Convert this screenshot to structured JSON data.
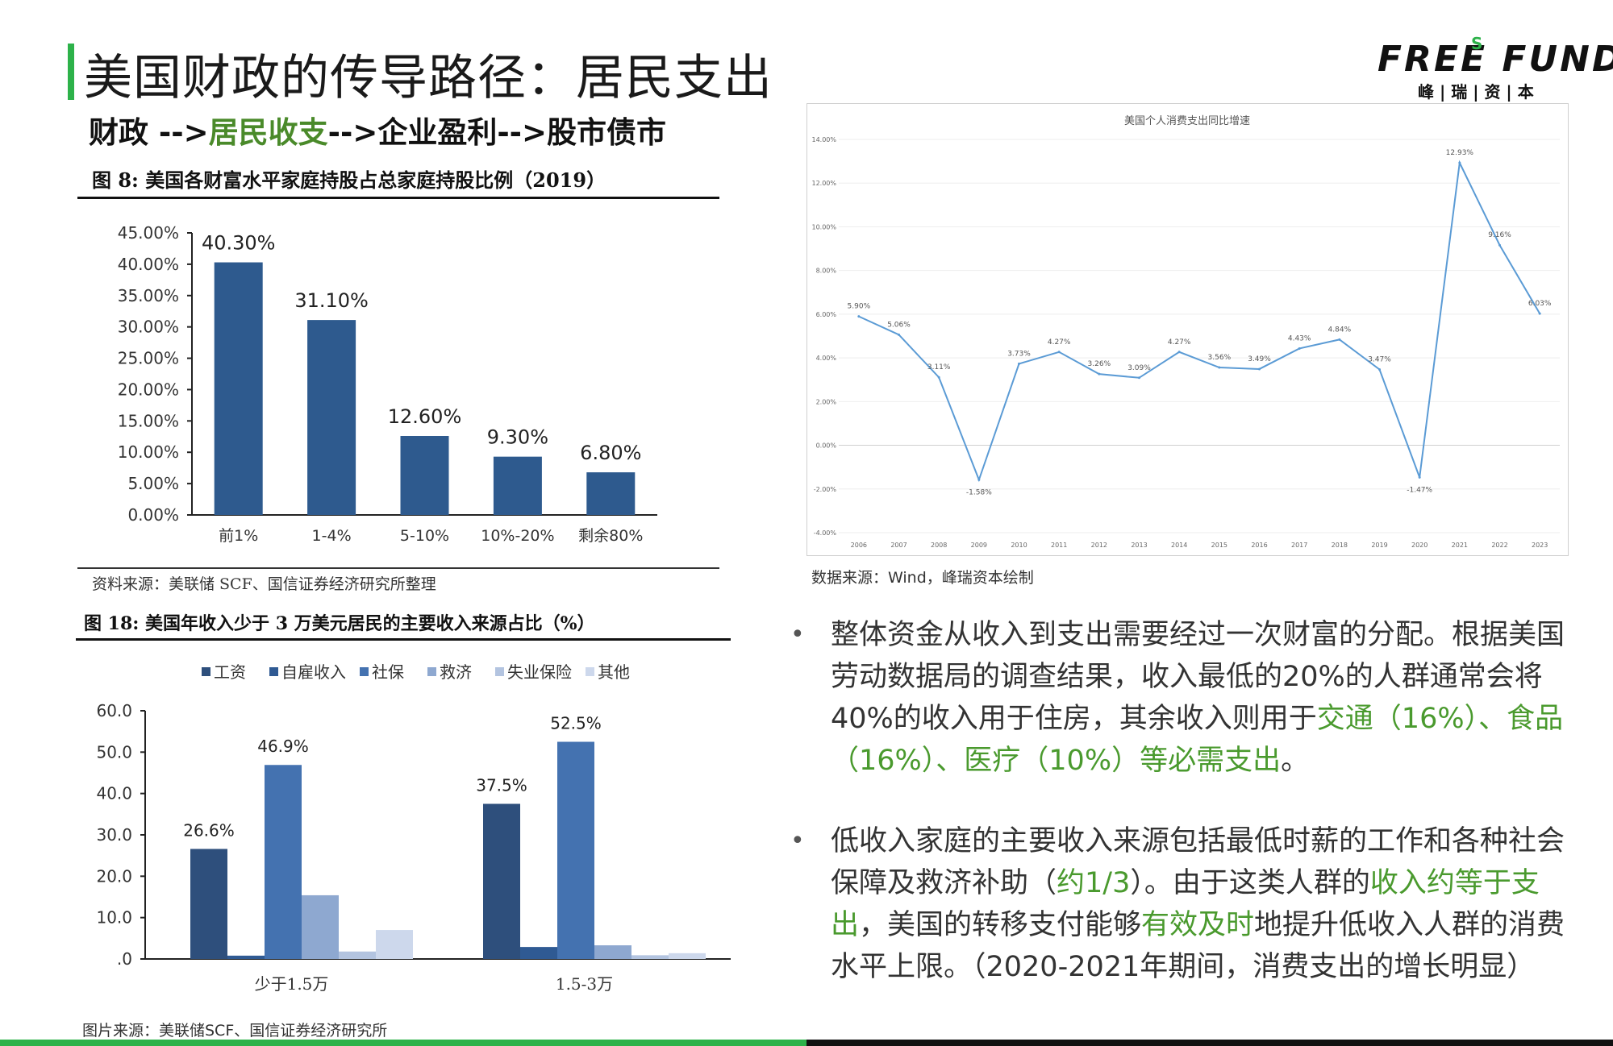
{
  "header": {
    "title": "美国财政的传导路径：居民支出",
    "subtitle_parts": [
      "财政 -->",
      "居民收支",
      "-->企业盈利-->股市债市"
    ],
    "logo_text": "FREE FUND",
    "logo_s": "S",
    "logo_cn": "峰 | 瑞 | 资 | 本"
  },
  "fig8": {
    "caption": "图 8:  美国各财富水平家庭持股占总家庭持股比例（2019）",
    "source": "资料来源：美联储 SCF、国信证券经济研究所整理"
  },
  "fig18": {
    "caption": "图 18:  美国年收入少于 3 万美元居民的主要收入来源占比（%）",
    "source": "图片来源：美联储SCF、国信证券经济研究所"
  },
  "line_chart_source": "数据来源：Wind，峰瑞资本绘制",
  "bullets": [
    {
      "parts": [
        {
          "text": "整体资金从收入到支出需要经过一次财富的分配。根据美国劳动数据局的调查结果，收入最低的20%的人群通常会将40%的收入用于住房，其余收入则用于",
          "green": false
        },
        {
          "text": "交通（16%）、食品（16%）、医疗（10%）等必需支出",
          "green": true
        },
        {
          "text": "。",
          "green": false
        }
      ]
    },
    {
      "parts": [
        {
          "text": "低收入家庭的主要收入来源包括最低时薪的工作和各种社会保障及救济补助（",
          "green": false
        },
        {
          "text": "约1/3",
          "green": true
        },
        {
          "text": "）。由于这类人群的",
          "green": false
        },
        {
          "text": "收入约等于支出",
          "green": true
        },
        {
          "text": "，美国的转移支付能够",
          "green": false
        },
        {
          "text": "有效及时",
          "green": true
        },
        {
          "text": "地提升低收入人群的消费水平上限。（2020-2021年期间，消费支出的增长明显）",
          "green": false
        }
      ]
    }
  ],
  "colors": {
    "accent_green": "#2db24a",
    "text_green": "#4a9a2e",
    "bar_blue": "#2e5a8e",
    "line_blue": "#5b9bd5"
  },
  "chart_data": [
    {
      "type": "bar",
      "title": "",
      "categories": [
        "前1%",
        "1-4%",
        "5-10%",
        "10%-20%",
        "剩余80%"
      ],
      "values": [
        40.3,
        31.1,
        12.6,
        9.3,
        6.8
      ],
      "value_labels": [
        "40.30%",
        "31.10%",
        "12.60%",
        "9.30%",
        "6.80%"
      ],
      "ylim": [
        0,
        45
      ],
      "yticks": [
        "0.00%",
        "5.00%",
        "10.00%",
        "15.00%",
        "20.00%",
        "25.00%",
        "30.00%",
        "35.00%",
        "40.00%",
        "45.00%"
      ],
      "xlabel": "",
      "ylabel": "",
      "grid": false
    },
    {
      "type": "bar",
      "title": "",
      "categories": [
        "少于1.5万",
        "1.5-3万"
      ],
      "series": [
        {
          "name": "工资",
          "values": [
            26.6,
            37.5
          ],
          "color": "#2e4f7c"
        },
        {
          "name": "自雇收入",
          "values": [
            0.8,
            2.9
          ],
          "color": "#2f5a93"
        },
        {
          "name": "社保",
          "values": [
            46.9,
            52.5
          ],
          "color": "#4472b0"
        },
        {
          "name": "救济",
          "values": [
            15.4,
            3.3
          ],
          "color": "#8ea8d0"
        },
        {
          "name": "失业保险",
          "values": [
            1.8,
            0.9
          ],
          "color": "#b3c4e0"
        },
        {
          "name": "其他",
          "values": [
            7.0,
            1.4
          ],
          "color": "#cdd8ec"
        }
      ],
      "labeled_values": {
        "工资": [
          "26.6%",
          "37.5%"
        ],
        "社保": [
          "46.9%",
          "52.5%"
        ]
      },
      "ylim": [
        0,
        60
      ],
      "yticks": [
        ".0",
        "10.0",
        "20.0",
        "30.0",
        "40.0",
        "50.0",
        "60.0"
      ],
      "legend": "top",
      "grid": false
    },
    {
      "type": "line",
      "title": "美国个人消费支出同比增速",
      "x": [
        "2006",
        "2007",
        "2008",
        "2009",
        "2010",
        "2011",
        "2012",
        "2013",
        "2014",
        "2015",
        "2016",
        "2017",
        "2018",
        "2019",
        "2020",
        "2021",
        "2022",
        "2023"
      ],
      "series": [
        {
          "values": [
            5.9,
            5.06,
            3.11,
            -1.58,
            3.73,
            4.27,
            3.26,
            3.09,
            4.27,
            3.56,
            3.49,
            4.43,
            4.84,
            3.47,
            -1.47,
            12.93,
            9.16,
            6.03
          ],
          "labels": [
            "5.90%",
            "5.06%",
            "3.11%",
            "-1.58%",
            "3.73%",
            "4.27%",
            "3.26%",
            "3.09%",
            "4.27%",
            "3.56%",
            "3.49%",
            "4.43%",
            "4.84%",
            "3.47%",
            "-1.47%",
            "12.93%",
            "9.16%",
            "6.03%"
          ]
        }
      ],
      "ylim": [
        -4,
        14
      ],
      "yticks": [
        "-4.00%",
        "-2.00%",
        "0.00%",
        "2.00%",
        "4.00%",
        "6.00%",
        "8.00%",
        "10.00%",
        "12.00%",
        "14.00%"
      ],
      "grid": true
    }
  ]
}
